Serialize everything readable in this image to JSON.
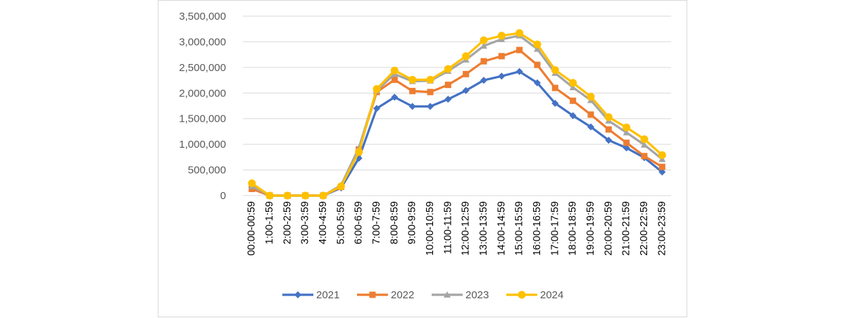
{
  "chart_data": {
    "type": "line",
    "title": "",
    "xlabel": "",
    "ylabel": "",
    "ylim": [
      0,
      3500000
    ],
    "y_ticks": [
      0,
      500000,
      1000000,
      1500000,
      2000000,
      2500000,
      3000000,
      3500000
    ],
    "y_tick_labels": [
      "0",
      "500,000",
      "1,000,000",
      "1,500,000",
      "2,000,000",
      "2,500,000",
      "3,000,000",
      "3,500,000"
    ],
    "grid": "horizontal",
    "legend_position": "bottom",
    "categories": [
      "00:00-00:59",
      "1:00-1:59",
      "2:00-2:59",
      "3:00-3:59",
      "4:00-4:59",
      "5:00-5:59",
      "6:00-6:59",
      "7:00-7:59",
      "8:00-8:59",
      "9:00-9:59",
      "10:00-10:59",
      "11:00-11:59",
      "12:00-12:59",
      "13:00-13:59",
      "14:00-14:59",
      "15:00-15:59",
      "16:00-16:59",
      "17:00-17:59",
      "18:00-18:59",
      "19:00-19:59",
      "20:00-20:59",
      "21:00-21:59",
      "22:00-22:59",
      "23:00-23:59"
    ],
    "series": [
      {
        "name": "2021",
        "color": "#4472C4",
        "marker": "diamond",
        "values": [
          160000,
          0,
          0,
          0,
          0,
          150000,
          730000,
          1700000,
          1920000,
          1740000,
          1740000,
          1880000,
          2050000,
          2250000,
          2330000,
          2420000,
          2200000,
          1800000,
          1560000,
          1340000,
          1080000,
          930000,
          740000,
          460000
        ]
      },
      {
        "name": "2022",
        "color": "#ED7D31",
        "marker": "square",
        "values": [
          130000,
          0,
          0,
          0,
          0,
          170000,
          900000,
          2020000,
          2260000,
          2040000,
          2020000,
          2160000,
          2370000,
          2620000,
          2720000,
          2840000,
          2550000,
          2100000,
          1850000,
          1580000,
          1290000,
          1030000,
          770000,
          560000
        ]
      },
      {
        "name": "2023",
        "color": "#A5A5A5",
        "marker": "triangle",
        "values": [
          180000,
          0,
          0,
          0,
          0,
          200000,
          930000,
          2050000,
          2370000,
          2230000,
          2240000,
          2430000,
          2650000,
          2920000,
          3050000,
          3120000,
          2860000,
          2390000,
          2110000,
          1860000,
          1460000,
          1230000,
          990000,
          710000
        ]
      },
      {
        "name": "2024",
        "color": "#FFC000",
        "marker": "circle",
        "values": [
          240000,
          0,
          0,
          0,
          0,
          180000,
          850000,
          2080000,
          2440000,
          2260000,
          2260000,
          2470000,
          2720000,
          3030000,
          3120000,
          3170000,
          2950000,
          2450000,
          2200000,
          1930000,
          1530000,
          1330000,
          1100000,
          790000
        ]
      }
    ]
  }
}
